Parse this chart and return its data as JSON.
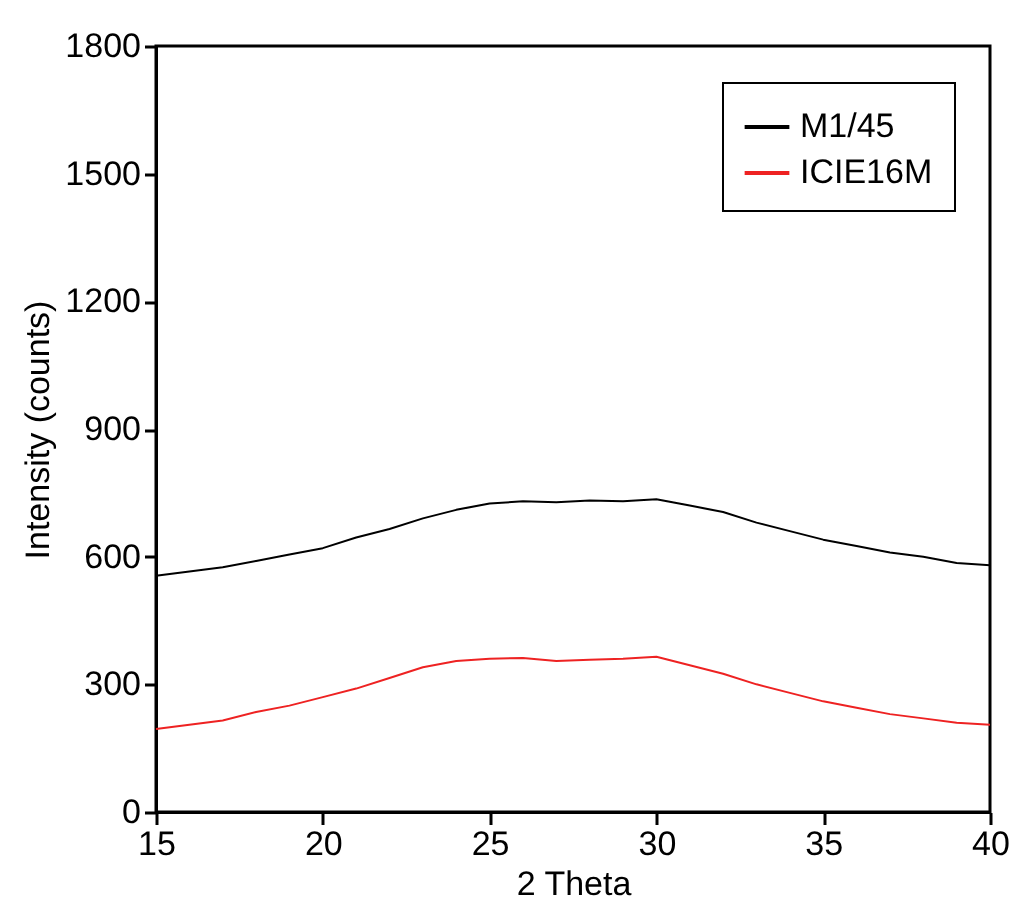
{
  "chart_data": {
    "type": "line",
    "xlabel": "2 Theta",
    "ylabel": "Intensity (counts)",
    "x": [
      15,
      16,
      17,
      18,
      19,
      20,
      21,
      22,
      23,
      24,
      25,
      26,
      27,
      28,
      29,
      30,
      31,
      32,
      33,
      34,
      35,
      36,
      37,
      38,
      39,
      40
    ],
    "series": [
      {
        "name": "M1/45",
        "color": "#000000",
        "values": [
          555,
          565,
          575,
          590,
          605,
          620,
          645,
          665,
          690,
          710,
          725,
          730,
          728,
          732,
          730,
          735,
          720,
          705,
          680,
          660,
          640,
          625,
          610,
          600,
          585,
          580
        ]
      },
      {
        "name": "ICIE16M",
        "color": "#ee2222",
        "values": [
          195,
          205,
          215,
          235,
          250,
          270,
          290,
          315,
          340,
          355,
          360,
          362,
          355,
          358,
          360,
          365,
          345,
          325,
          300,
          280,
          260,
          245,
          230,
          220,
          210,
          205
        ]
      }
    ],
    "xlim": [
      15,
      40
    ],
    "xticks": [
      15,
      20,
      25,
      30,
      35,
      40
    ],
    "ylim": [
      0,
      1800
    ],
    "yticks": [
      0,
      300,
      600,
      900,
      1200,
      1500,
      1800
    ],
    "grid": false,
    "legend": "top right"
  }
}
